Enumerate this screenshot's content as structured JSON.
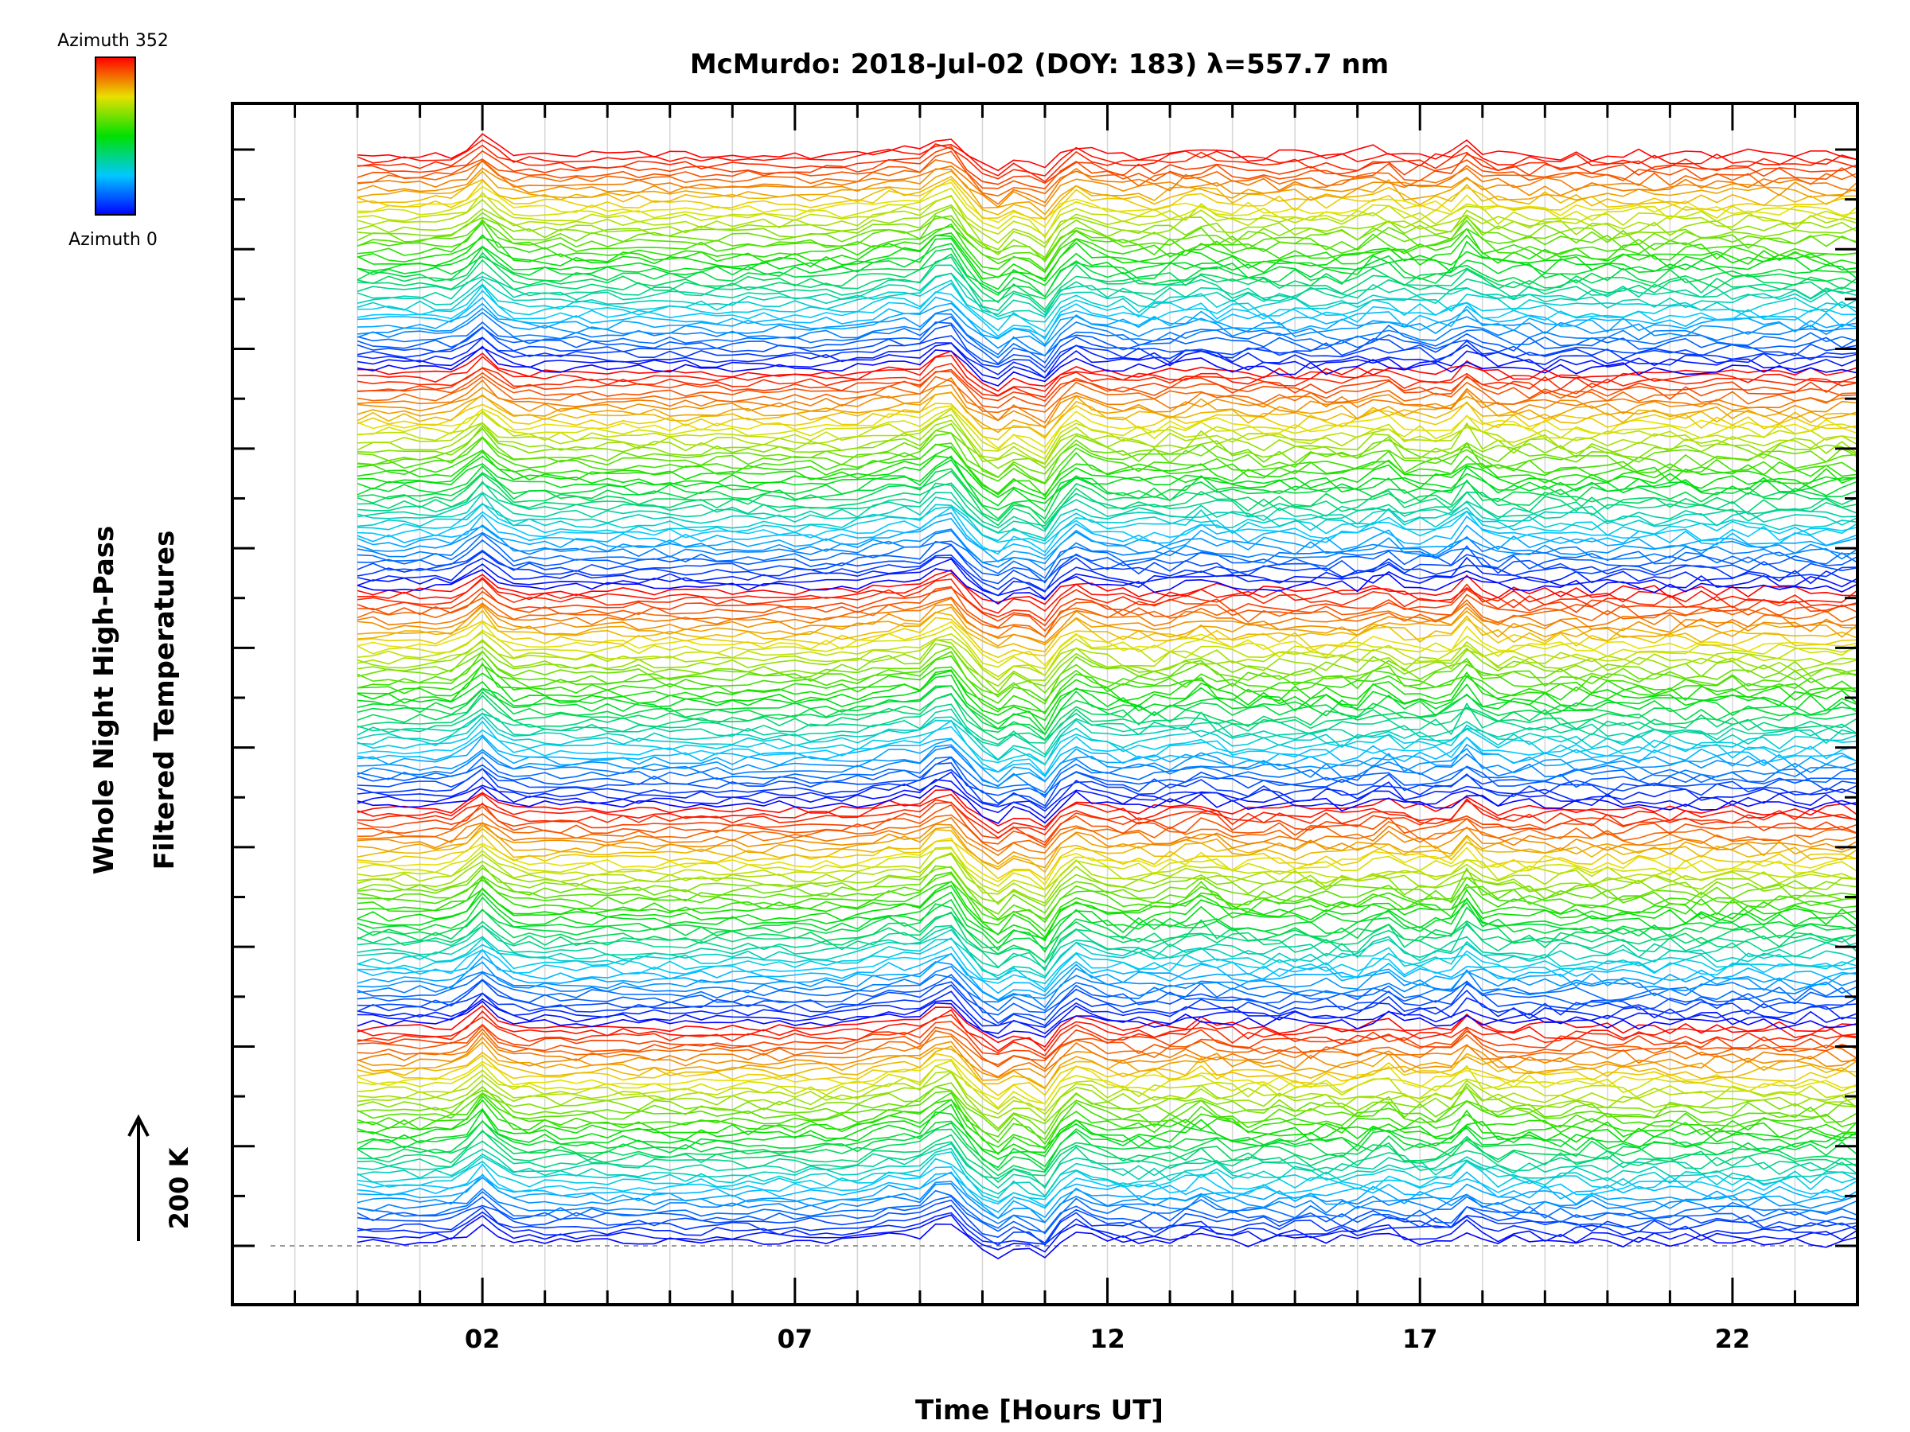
{
  "chart_data": {
    "type": "line",
    "title": "McMurdo: 2018-Jul-02 (DOY: 183) λ=557.7 nm",
    "xlabel": "Time [Hours UT]",
    "ylabel_line1": "Whole Night High-Pass",
    "ylabel_line2": "Filtered Temperatures",
    "xlim": [
      -2,
      24
    ],
    "x_major_ticks": [
      2,
      7,
      12,
      17,
      22
    ],
    "x_tick_labels": [
      "02",
      "07",
      "12",
      "17",
      "22"
    ],
    "x_minor_step": 1,
    "y_scale_label": "200 K",
    "colorbar": {
      "top_label": "Azimuth 352",
      "bottom_label": "Azimuth 0"
    },
    "azimuth_start": 0,
    "azimuth_step": 8,
    "azimuth_count": 45,
    "groups": 5,
    "data_start_hour": 0.0,
    "data_end_hour": 24.0,
    "time_step_hours": 0.25,
    "series_note": "225 stacked high-pass filtered temperature traces (5 groups of 45 azimuths, 0-352 deg), colored by azimuth"
  }
}
